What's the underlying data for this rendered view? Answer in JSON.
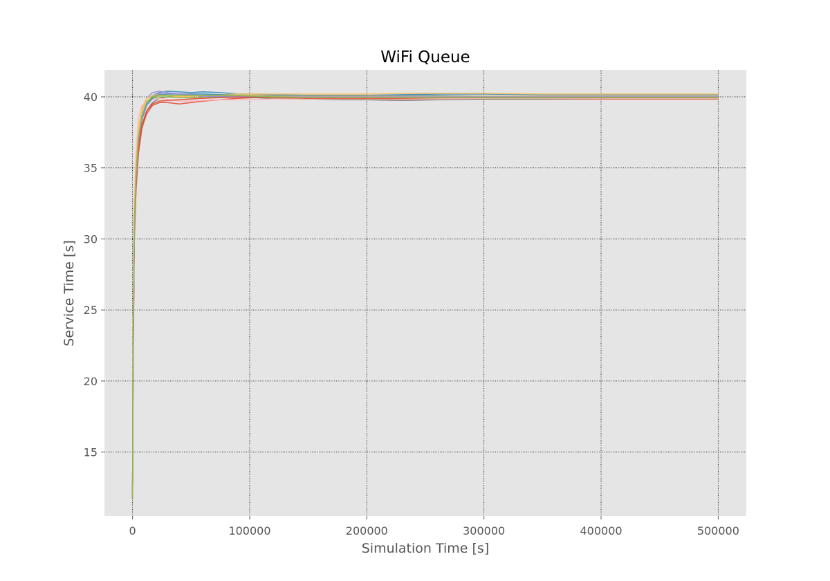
{
  "chart_data": {
    "type": "line",
    "title": "WiFi Queue",
    "xlabel": "Simulation Time [s]",
    "ylabel": "Service Time [s]",
    "xlim": [
      -24000,
      524000
    ],
    "ylim": [
      10.5,
      41.9
    ],
    "xticks": [
      0,
      100000,
      200000,
      300000,
      400000,
      500000
    ],
    "xtick_labels": [
      "0",
      "100000",
      "200000",
      "300000",
      "400000",
      "500000"
    ],
    "yticks": [
      15,
      20,
      25,
      30,
      35,
      40
    ],
    "ytick_labels": [
      "15",
      "20",
      "25",
      "30",
      "35",
      "40"
    ],
    "grid": true,
    "legend": "none",
    "colors": {
      "background": "#e5e5e5",
      "grid": "#000000",
      "series": [
        "#348abd",
        "#e24a33",
        "#988ed5",
        "#777777",
        "#fbc15e",
        "#8eba42",
        "#ffb5b8",
        "#348abd",
        "#e24a33",
        "#fbc15e",
        "#988ed5",
        "#8eba42"
      ]
    },
    "x": [
      0,
      500,
      1500,
      3000,
      5000,
      8000,
      12000,
      17000,
      23000,
      30000,
      40000,
      50000,
      60000,
      75000,
      90000,
      105000,
      120000,
      150000,
      180000,
      200000,
      230000,
      260000,
      300000,
      350000,
      400000,
      450000,
      500000
    ],
    "series": [
      {
        "values": [
          11.7,
          22.0,
          31.0,
          34.5,
          37.0,
          38.5,
          39.6,
          40.1,
          40.3,
          40.4,
          40.35,
          40.3,
          40.35,
          40.3,
          40.2,
          40.2,
          40.15,
          40.1,
          40.1,
          40.1,
          40.15,
          40.2,
          40.2,
          40.15,
          40.15,
          40.15,
          40.15
        ]
      },
      {
        "values": [
          11.7,
          21.0,
          30.0,
          33.5,
          36.0,
          37.8,
          38.8,
          39.4,
          39.6,
          39.6,
          39.5,
          39.6,
          39.7,
          39.8,
          39.9,
          39.95,
          39.9,
          39.85,
          39.85,
          39.85,
          39.85,
          39.85,
          39.85,
          39.85,
          39.85,
          39.85,
          39.85
        ]
      },
      {
        "values": [
          11.7,
          23.0,
          31.5,
          35.0,
          37.5,
          39.0,
          39.9,
          40.3,
          40.4,
          40.3,
          40.2,
          40.1,
          40.05,
          40.0,
          40.0,
          40.0,
          40.0,
          40.0,
          40.0,
          40.0,
          40.0,
          40.0,
          40.0,
          40.0,
          40.0,
          40.0,
          40.0
        ]
      },
      {
        "values": [
          11.7,
          22.5,
          30.5,
          34.0,
          36.5,
          38.0,
          39.0,
          39.6,
          39.9,
          40.0,
          40.05,
          40.1,
          40.1,
          40.05,
          40.0,
          39.95,
          39.9,
          39.85,
          39.8,
          39.8,
          39.75,
          39.8,
          39.85,
          39.85,
          39.9,
          39.9,
          39.9
        ]
      },
      {
        "values": [
          11.7,
          24.0,
          32.0,
          35.5,
          37.8,
          39.2,
          39.9,
          40.1,
          40.2,
          40.1,
          40.0,
          40.05,
          40.1,
          40.15,
          40.2,
          40.2,
          40.2,
          40.2,
          40.2,
          40.2,
          40.25,
          40.25,
          40.25,
          40.2,
          40.2,
          40.2,
          40.2
        ]
      },
      {
        "values": [
          11.7,
          22.8,
          31.2,
          34.8,
          37.2,
          38.6,
          39.5,
          39.9,
          40.0,
          40.0,
          39.95,
          39.95,
          39.95,
          39.95,
          40.0,
          40.0,
          39.95,
          39.95,
          39.9,
          39.9,
          39.9,
          39.9,
          39.9,
          39.9,
          39.9,
          39.9,
          39.9
        ]
      },
      {
        "values": [
          11.7,
          23.5,
          32.5,
          36.0,
          38.5,
          39.4,
          39.6,
          39.8,
          39.9,
          39.8,
          39.7,
          39.7,
          39.75,
          39.8,
          39.8,
          39.8,
          39.85,
          39.85,
          39.85,
          39.85,
          39.85,
          39.85,
          39.9,
          39.9,
          39.9,
          39.9,
          39.9
        ]
      },
      {
        "values": [
          11.7,
          21.8,
          30.8,
          34.2,
          36.8,
          38.4,
          39.4,
          39.9,
          40.15,
          40.2,
          40.2,
          40.2,
          40.2,
          40.15,
          40.1,
          40.1,
          40.1,
          40.1,
          40.1,
          40.1,
          40.1,
          40.1,
          40.05,
          40.05,
          40.05,
          40.05,
          40.05
        ]
      },
      {
        "values": [
          11.7,
          21.5,
          30.2,
          33.8,
          36.4,
          38.0,
          39.0,
          39.5,
          39.7,
          39.75,
          39.8,
          39.85,
          39.9,
          39.95,
          40.0,
          40.0,
          39.95,
          39.9,
          39.9,
          39.9,
          39.9,
          39.95,
          39.95,
          39.95,
          39.95,
          39.95,
          39.95
        ]
      },
      {
        "values": [
          11.7,
          23.2,
          31.8,
          35.2,
          37.6,
          39.0,
          39.7,
          40.0,
          40.1,
          40.1,
          40.05,
          40.05,
          40.1,
          40.1,
          40.1,
          40.1,
          40.05,
          40.05,
          40.05,
          40.05,
          40.05,
          40.05,
          40.05,
          40.05,
          40.05,
          40.05,
          40.05
        ]
      },
      {
        "values": [
          11.7,
          22.2,
          30.6,
          34.3,
          36.9,
          38.5,
          39.5,
          40.0,
          40.2,
          40.25,
          40.2,
          40.15,
          40.1,
          40.05,
          40.05,
          40.05,
          40.0,
          40.0,
          40.0,
          40.0,
          40.0,
          40.0,
          40.0,
          40.0,
          40.0,
          40.0,
          40.0
        ]
      },
      {
        "values": [
          11.7,
          22.6,
          31.0,
          34.6,
          37.1,
          38.7,
          39.6,
          40.0,
          40.1,
          40.1,
          40.1,
          40.1,
          40.1,
          40.1,
          40.1,
          40.05,
          40.0,
          39.95,
          39.95,
          39.95,
          39.95,
          39.95,
          39.95,
          39.95,
          39.95,
          39.95,
          39.95
        ]
      }
    ]
  }
}
